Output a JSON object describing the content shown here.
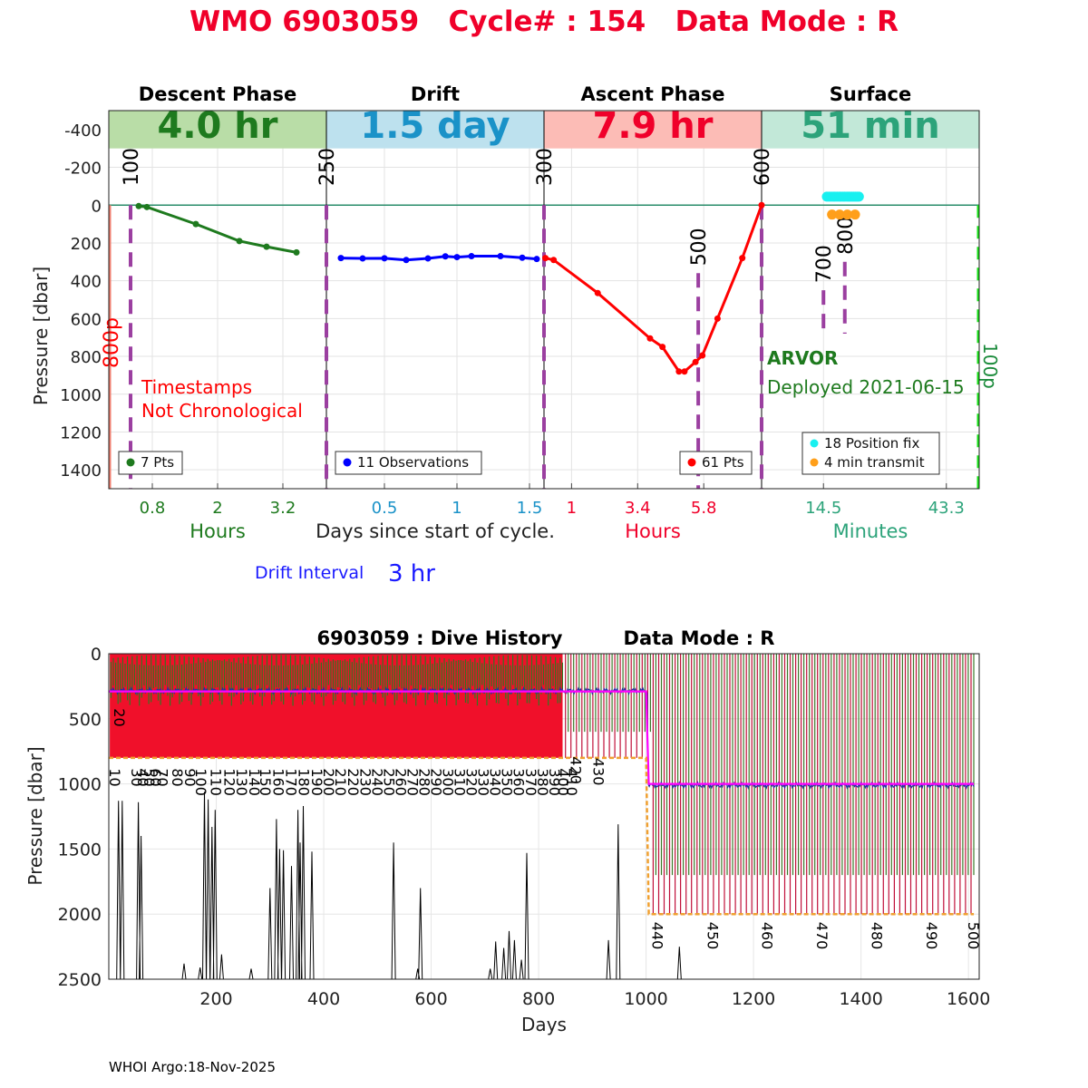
{
  "title": "WMO 6903059   Cycle# : 154   Data Mode : R",
  "footer": "WHOI Argo:18-Nov-2025",
  "colors": {
    "title": "#f0002a",
    "descent": "#1e7a1e",
    "drift": "#0000ff",
    "ascent": "#ff0000",
    "surface": "#2ca37a",
    "purple": "#9b3fa0",
    "cyan": "#19f0f0",
    "orange": "#ff9f1a",
    "magenta": "#ff00ff",
    "navy": "#1f2ea8",
    "darkred": "#b0002a"
  },
  "chart_data": [
    {
      "type": "line",
      "title": "Cycle 154 profile timeline",
      "ylabel": "Pressure [dbar]",
      "ylim": [
        -500,
        1500
      ],
      "yticks": [
        -400,
        -200,
        0,
        200,
        400,
        600,
        800,
        1000,
        1200,
        1400
      ],
      "xlabel_center": "Days since start of cycle.",
      "panels": [
        {
          "name": "Descent Phase",
          "duration": "4.0 hr",
          "banner_color": "#b9dda7",
          "text_color": "#1e7a1e",
          "x_unit": "Hours",
          "xlim": [
            0,
            4.0
          ],
          "xticks": [
            0.8,
            2,
            3.2
          ],
          "xticklabels": [
            "0.8",
            "2",
            "3.2"
          ],
          "series": [
            {
              "name": "7 Pts",
              "color": "#1e7a1e",
              "x": [
                0.55,
                0.7,
                1.6,
                2.4,
                2.9,
                3.45
              ],
              "y": [
                5,
                10,
                100,
                190,
                220,
                250
              ]
            }
          ],
          "legend": "7 Pts",
          "vmarks": [
            {
              "x": 0.4,
              "label": "100",
              "y0": 0,
              "y1": 1500
            }
          ],
          "side_label": "800p",
          "note": [
            "Timestamps",
            "Not Chronological"
          ]
        },
        {
          "name": "Drift",
          "duration": "1.5 day",
          "banner_color": "#bde1ee",
          "text_color": "#1a92c8",
          "x_unit": "Days",
          "xlim": [
            0.1,
            1.6
          ],
          "xticks": [
            0.5,
            1,
            1.5
          ],
          "xticklabels": [
            "0.5",
            "1",
            "1.5"
          ],
          "series": [
            {
              "name": "11 Observations",
              "color": "#0000ff",
              "x": [
                0.2,
                0.35,
                0.5,
                0.65,
                0.8,
                0.92,
                1.0,
                1.1,
                1.3,
                1.45,
                1.55
              ],
              "y": [
                280,
                282,
                281,
                290,
                282,
                271,
                275,
                270,
                270,
                278,
                285
              ]
            }
          ],
          "legend": "11 Observations",
          "vmarks": [
            {
              "x": 0.1,
              "label": "250",
              "y0": 0,
              "y1": 1500
            }
          ]
        },
        {
          "name": "Ascent Phase",
          "duration": "7.9 hr",
          "banner_color": "#fcbcb6",
          "text_color": "#f0002a",
          "x_unit": "Hours",
          "xlim": [
            0,
            7.9
          ],
          "xticks": [
            1,
            3.4,
            5.8
          ],
          "xticklabels": [
            "1",
            "3.4",
            "5.8"
          ],
          "series": [
            {
              "name": "61 Pts",
              "color": "#ff0000",
              "x": [
                0.05,
                0.35,
                1.95,
                3.85,
                4.3,
                4.9,
                5.1,
                5.5,
                5.75,
                6.3,
                7.2,
                7.9
              ],
              "y": [
                280,
                290,
                465,
                705,
                750,
                880,
                880,
                830,
                795,
                600,
                280,
                0
              ]
            }
          ],
          "legend": "61 Pts",
          "vmarks": [
            {
              "x": 0.0,
              "label": "300",
              "y0": 0,
              "y1": 1500
            },
            {
              "x": 5.6,
              "label": "500",
              "y0": 360,
              "y1": 1500
            },
            {
              "x": 7.9,
              "label": "600",
              "y0": 0,
              "y1": 1500
            }
          ]
        },
        {
          "name": "Surface",
          "duration": "51 min",
          "banner_color": "#c2e8d8",
          "text_color": "#2ca37a",
          "x_unit": "Minutes",
          "xlim": [
            0,
            51
          ],
          "xticks": [
            14.5,
            43.3
          ],
          "xticklabels": [
            "14.5",
            "43.3"
          ],
          "series": [
            {
              "name": "18 Position fix",
              "color": "#19f0f0",
              "x": [
                15.3,
                15.8,
                16.3,
                16.8,
                17.2,
                17.7,
                18.2,
                18.6,
                19.1,
                19.5,
                20.0,
                20.4,
                20.8,
                21.2,
                21.6,
                22.0,
                22.4,
                22.8
              ],
              "y": [
                -45,
                -45,
                -45,
                -45,
                -45,
                -45,
                -45,
                -45,
                -45,
                -45,
                -45,
                -45,
                -45,
                -45,
                -45,
                -45,
                -45,
                -45
              ]
            },
            {
              "name": "4 min transmit",
              "color": "#ff9f1a",
              "x": [
                16.5,
                18.3,
                20.1,
                21.9
              ],
              "y": [
                50,
                50,
                50,
                50
              ]
            }
          ],
          "legend": [
            "18 Position fix",
            "4 min transmit"
          ],
          "vmarks": [
            {
              "x": 14.5,
              "label": "700",
              "y0": 450,
              "y1": 680
            },
            {
              "x": 19.5,
              "label": "800",
              "y0": 300,
              "y1": 680
            }
          ],
          "green_mark": {
            "x": 51,
            "label": "100p"
          },
          "float_type": "ARVOR",
          "deployed": "Deployed 2021-06-15"
        }
      ],
      "drift_interval_label": "Drift Interval",
      "drift_interval_value": "3 hr"
    },
    {
      "type": "line",
      "title": "6903059 : Dive History",
      "title_right": "Data Mode : R",
      "xlabel": "Days",
      "ylabel": "Pressure [dbar]",
      "xlim": [
        0,
        1620
      ],
      "ylim": [
        0,
        2500
      ],
      "xticks": [
        200,
        400,
        600,
        800,
        1000,
        1200,
        1400,
        1600
      ],
      "yticks": [
        0,
        500,
        1000,
        1500,
        2000,
        2500
      ],
      "park_pressure": [
        {
          "day_start": 0,
          "day_end": 1000,
          "value": 290
        },
        {
          "day_start": 1010,
          "day_end": 1610,
          "value": 1000
        }
      ],
      "profile_pressure": [
        {
          "day_start": 0,
          "day_end": 1000,
          "value": 800
        },
        {
          "day_start": 1010,
          "day_end": 1610,
          "value": 2000
        }
      ],
      "transition_day": 1005,
      "dense_period": [
        0,
        845
      ],
      "cycle_labels_upper": [
        {
          "day": 20,
          "label": "20",
          "y": 420
        },
        {
          "day": 12,
          "label": "10",
          "y": 880
        },
        {
          "day": 52,
          "label": "30",
          "y": 880
        },
        {
          "day": 64,
          "label": "40",
          "y": 880
        },
        {
          "day": 88,
          "label": "60",
          "y": 880
        },
        {
          "day": 76,
          "label": "50",
          "y": 880
        },
        {
          "day": 100,
          "label": "70",
          "y": 880
        },
        {
          "day": 128,
          "label": "80",
          "y": 880
        },
        {
          "day": 152,
          "label": "90",
          "y": 880
        },
        {
          "day": 172,
          "label": "100",
          "y": 880
        },
        {
          "day": 200,
          "label": "110",
          "y": 880
        },
        {
          "day": 225,
          "label": "120",
          "y": 880
        },
        {
          "day": 248,
          "label": "130",
          "y": 880
        },
        {
          "day": 272,
          "label": "140",
          "y": 880
        },
        {
          "day": 292,
          "label": "150",
          "y": 880
        },
        {
          "day": 316,
          "label": "160",
          "y": 880
        },
        {
          "day": 340,
          "label": "170",
          "y": 880
        },
        {
          "day": 364,
          "label": "180",
          "y": 880
        },
        {
          "day": 388,
          "label": "190",
          "y": 880
        },
        {
          "day": 410,
          "label": "200",
          "y": 880
        },
        {
          "day": 432,
          "label": "210",
          "y": 880
        },
        {
          "day": 456,
          "label": "220",
          "y": 880
        },
        {
          "day": 478,
          "label": "230",
          "y": 880
        },
        {
          "day": 500,
          "label": "240",
          "y": 880
        },
        {
          "day": 522,
          "label": "250",
          "y": 880
        },
        {
          "day": 544,
          "label": "260",
          "y": 880
        },
        {
          "day": 566,
          "label": "270",
          "y": 880
        },
        {
          "day": 588,
          "label": "280",
          "y": 880
        },
        {
          "day": 610,
          "label": "290",
          "y": 880
        },
        {
          "day": 632,
          "label": "300",
          "y": 880
        },
        {
          "day": 654,
          "label": "310",
          "y": 880
        },
        {
          "day": 676,
          "label": "320",
          "y": 880
        },
        {
          "day": 698,
          "label": "330",
          "y": 880
        },
        {
          "day": 720,
          "label": "340",
          "y": 880
        },
        {
          "day": 742,
          "label": "350",
          "y": 880
        },
        {
          "day": 764,
          "label": "360",
          "y": 880
        },
        {
          "day": 786,
          "label": "370",
          "y": 880
        },
        {
          "day": 808,
          "label": "380",
          "y": 880
        },
        {
          "day": 830,
          "label": "390",
          "y": 880
        },
        {
          "day": 846,
          "label": "400",
          "y": 880
        },
        {
          "day": 862,
          "label": "410",
          "y": 880
        },
        {
          "day": 870,
          "label": "420",
          "y": 790
        },
        {
          "day": 912,
          "label": "430",
          "y": 800
        }
      ],
      "cycle_labels_lower": [
        {
          "day": 1022,
          "label": "440"
        },
        {
          "day": 1125,
          "label": "450"
        },
        {
          "day": 1226,
          "label": "460"
        },
        {
          "day": 1328,
          "label": "470"
        },
        {
          "day": 1430,
          "label": "480"
        },
        {
          "day": 1532,
          "label": "490"
        },
        {
          "day": 1610,
          "label": "500"
        }
      ],
      "black_spikes": [
        {
          "day": 18,
          "depth": 1130
        },
        {
          "day": 25,
          "depth": 1130
        },
        {
          "day": 55,
          "depth": 1140
        },
        {
          "day": 60,
          "depth": 1400
        },
        {
          "day": 140,
          "depth": 2380
        },
        {
          "day": 170,
          "depth": 2410
        },
        {
          "day": 178,
          "depth": 1060
        },
        {
          "day": 185,
          "depth": 1120
        },
        {
          "day": 192,
          "depth": 1330
        },
        {
          "day": 198,
          "depth": 1200
        },
        {
          "day": 210,
          "depth": 2310
        },
        {
          "day": 265,
          "depth": 2420
        },
        {
          "day": 300,
          "depth": 1800
        },
        {
          "day": 312,
          "depth": 1270
        },
        {
          "day": 318,
          "depth": 1500
        },
        {
          "day": 325,
          "depth": 1510
        },
        {
          "day": 340,
          "depth": 1630
        },
        {
          "day": 352,
          "depth": 1200
        },
        {
          "day": 356,
          "depth": 1450
        },
        {
          "day": 362,
          "depth": 1170
        },
        {
          "day": 378,
          "depth": 1520
        },
        {
          "day": 530,
          "depth": 1450
        },
        {
          "day": 575,
          "depth": 2420
        },
        {
          "day": 580,
          "depth": 1800
        },
        {
          "day": 710,
          "depth": 2420
        },
        {
          "day": 720,
          "depth": 2210
        },
        {
          "day": 735,
          "depth": 2260
        },
        {
          "day": 745,
          "depth": 2130
        },
        {
          "day": 755,
          "depth": 2200
        },
        {
          "day": 768,
          "depth": 2350
        },
        {
          "day": 778,
          "depth": 1530
        },
        {
          "day": 930,
          "depth": 2200
        },
        {
          "day": 948,
          "depth": 1310
        },
        {
          "day": 1062,
          "depth": 2250
        }
      ]
    }
  ]
}
